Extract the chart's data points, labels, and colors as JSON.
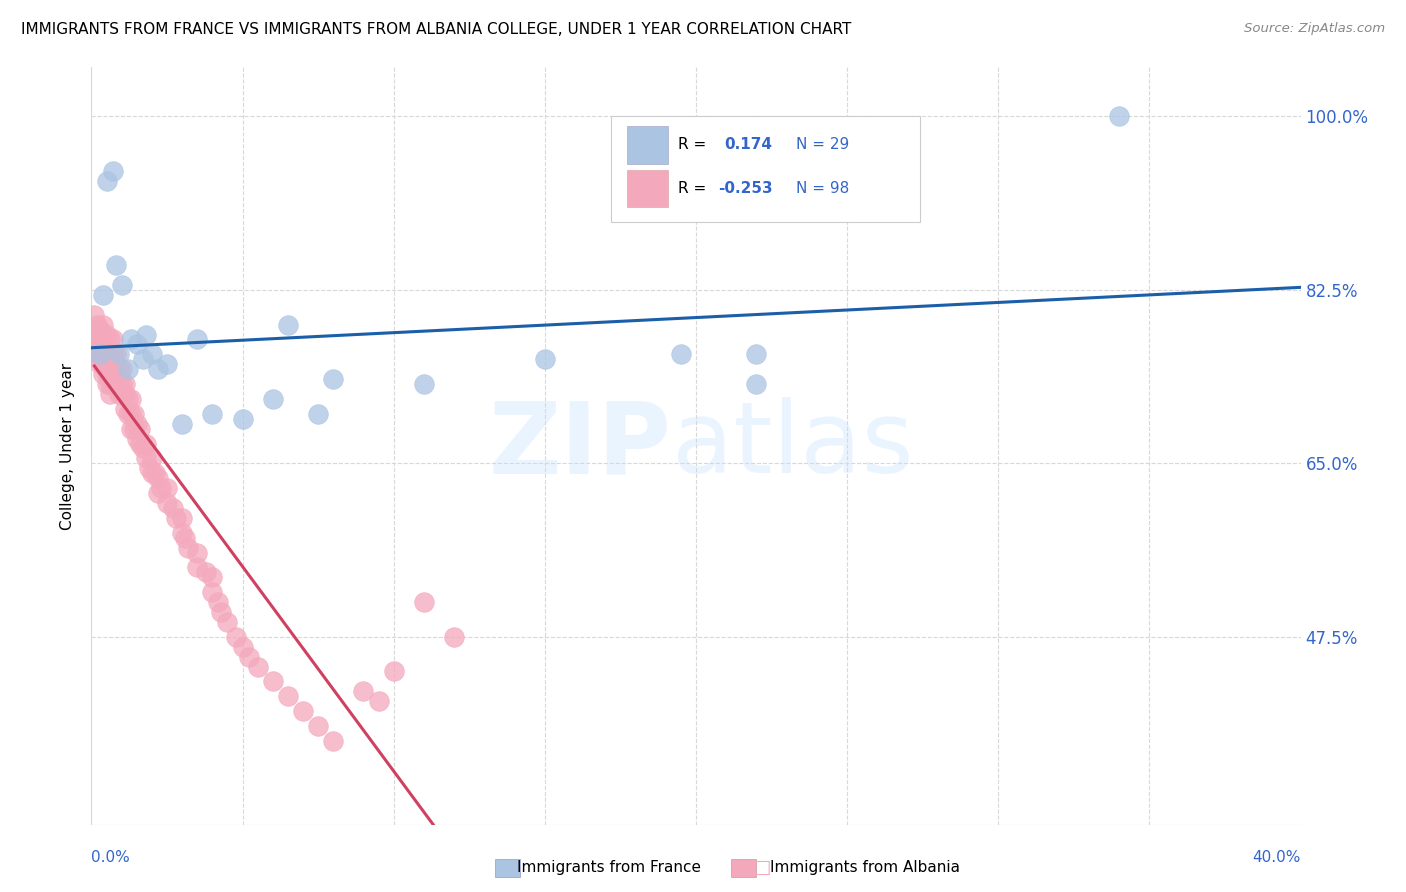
{
  "title": "IMMIGRANTS FROM FRANCE VS IMMIGRANTS FROM ALBANIA COLLEGE, UNDER 1 YEAR CORRELATION CHART",
  "source": "Source: ZipAtlas.com",
  "ylabel": "College, Under 1 year",
  "xlim": [
    0.0,
    0.4
  ],
  "ylim": [
    0.285,
    1.05
  ],
  "france_R": 0.174,
  "france_N": 29,
  "albania_R": -0.253,
  "albania_N": 98,
  "france_color": "#aac4e2",
  "albania_color": "#f4a8bc",
  "france_line_color": "#1a5fa8",
  "albania_line_color": "#d04060",
  "trendline_dashed_color": "#e0b0bc",
  "grid_color": "#d8d8d8",
  "right_label_color": "#3366cc",
  "ytick_vals": [
    1.0,
    0.825,
    0.65,
    0.475
  ],
  "ytick_labels": [
    "100.0%",
    "82.5%",
    "65.0%",
    "47.5%"
  ],
  "france_x": [
    0.003,
    0.004,
    0.005,
    0.007,
    0.008,
    0.009,
    0.01,
    0.012,
    0.013,
    0.015,
    0.017,
    0.018,
    0.02,
    0.022,
    0.025,
    0.03,
    0.035,
    0.04,
    0.05,
    0.06,
    0.065,
    0.075,
    0.08,
    0.11,
    0.15,
    0.195,
    0.22,
    0.22,
    0.34
  ],
  "france_y": [
    0.76,
    0.82,
    0.935,
    0.945,
    0.85,
    0.76,
    0.83,
    0.745,
    0.775,
    0.77,
    0.755,
    0.78,
    0.76,
    0.745,
    0.75,
    0.69,
    0.775,
    0.7,
    0.695,
    0.715,
    0.79,
    0.7,
    0.735,
    0.73,
    0.755,
    0.76,
    0.76,
    0.73,
    1.0
  ],
  "albania_x": [
    0.001,
    0.001,
    0.001,
    0.002,
    0.002,
    0.002,
    0.002,
    0.003,
    0.003,
    0.003,
    0.003,
    0.003,
    0.004,
    0.004,
    0.004,
    0.004,
    0.004,
    0.004,
    0.005,
    0.005,
    0.005,
    0.005,
    0.005,
    0.006,
    0.006,
    0.006,
    0.006,
    0.006,
    0.006,
    0.007,
    0.007,
    0.007,
    0.007,
    0.007,
    0.008,
    0.008,
    0.008,
    0.008,
    0.009,
    0.009,
    0.009,
    0.01,
    0.01,
    0.01,
    0.011,
    0.011,
    0.011,
    0.012,
    0.012,
    0.013,
    0.013,
    0.013,
    0.014,
    0.014,
    0.015,
    0.015,
    0.016,
    0.016,
    0.017,
    0.018,
    0.018,
    0.019,
    0.02,
    0.02,
    0.021,
    0.022,
    0.022,
    0.023,
    0.025,
    0.025,
    0.027,
    0.028,
    0.03,
    0.03,
    0.031,
    0.032,
    0.035,
    0.035,
    0.038,
    0.04,
    0.04,
    0.042,
    0.043,
    0.045,
    0.048,
    0.05,
    0.052,
    0.055,
    0.06,
    0.065,
    0.07,
    0.075,
    0.08,
    0.09,
    0.095,
    0.1,
    0.11,
    0.12
  ],
  "albania_y": [
    0.785,
    0.8,
    0.76,
    0.79,
    0.775,
    0.76,
    0.77,
    0.785,
    0.76,
    0.775,
    0.755,
    0.75,
    0.79,
    0.775,
    0.77,
    0.76,
    0.75,
    0.74,
    0.78,
    0.76,
    0.75,
    0.74,
    0.73,
    0.775,
    0.76,
    0.75,
    0.745,
    0.73,
    0.72,
    0.775,
    0.76,
    0.75,
    0.74,
    0.73,
    0.76,
    0.75,
    0.74,
    0.73,
    0.745,
    0.735,
    0.72,
    0.745,
    0.73,
    0.72,
    0.73,
    0.72,
    0.705,
    0.715,
    0.7,
    0.715,
    0.7,
    0.685,
    0.7,
    0.685,
    0.69,
    0.675,
    0.685,
    0.67,
    0.665,
    0.67,
    0.655,
    0.645,
    0.655,
    0.64,
    0.64,
    0.635,
    0.62,
    0.625,
    0.625,
    0.61,
    0.605,
    0.595,
    0.595,
    0.58,
    0.575,
    0.565,
    0.56,
    0.545,
    0.54,
    0.535,
    0.52,
    0.51,
    0.5,
    0.49,
    0.475,
    0.465,
    0.455,
    0.445,
    0.43,
    0.415,
    0.4,
    0.385,
    0.37,
    0.42,
    0.41,
    0.44,
    0.51,
    0.475
  ]
}
